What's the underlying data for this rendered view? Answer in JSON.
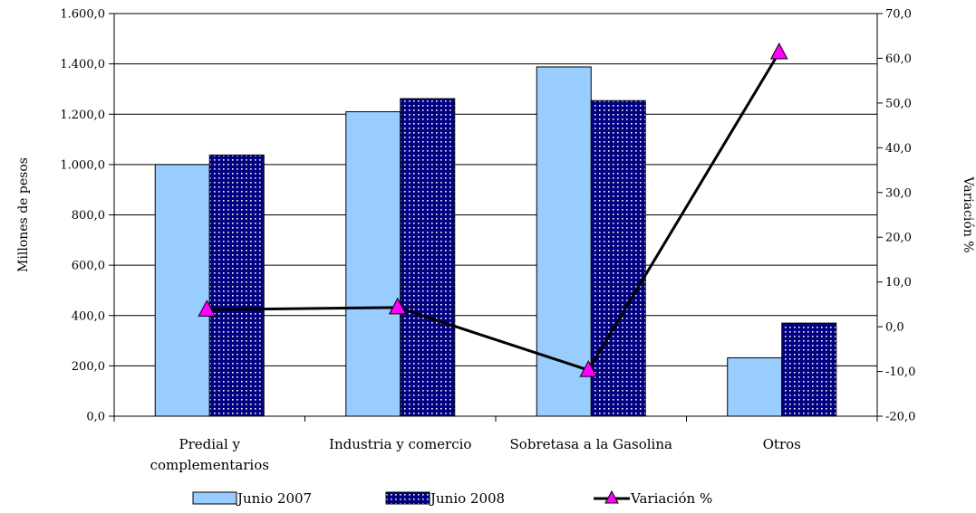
{
  "chart_data": {
    "type": "bar",
    "categories": [
      [
        "Predial y",
        "complementarios"
      ],
      [
        "Industria y comercio"
      ],
      [
        "Sobretasa a la Gasolina"
      ],
      [
        "Otros"
      ]
    ],
    "series": [
      {
        "name": "Junio 2007",
        "type": "bar",
        "axis": "left",
        "color": "#99ccff",
        "pattern": "solid",
        "values": [
          1000,
          1210,
          1388,
          232
        ]
      },
      {
        "name": "Junio 2008",
        "type": "bar",
        "axis": "left",
        "color": "#000080",
        "pattern": "dotted",
        "values": [
          1038,
          1262,
          1254,
          370
        ]
      },
      {
        "name": "Variación %",
        "type": "line",
        "axis": "right",
        "color": "#000000",
        "marker": "triangle",
        "marker_color": "#ff00ff",
        "values": [
          3.8,
          4.3,
          -9.7,
          61.3
        ]
      }
    ],
    "ylabel": "Millones de pesos",
    "y2label": "Variación %",
    "ylim": [
      0,
      1600
    ],
    "y2lim": [
      -20,
      70
    ],
    "yticks": [
      "0,0",
      "200,0",
      "400,0",
      "600,0",
      "800,0",
      "1.000,0",
      "1.200,0",
      "1.400,0",
      "1.600,0"
    ],
    "y2ticks": [
      "-20,0",
      "-10,0",
      "0,0",
      "10,0",
      "20,0",
      "30,0",
      "40,0",
      "50,0",
      "60,0",
      "70,0"
    ],
    "grid": true,
    "legend_position": "bottom"
  }
}
